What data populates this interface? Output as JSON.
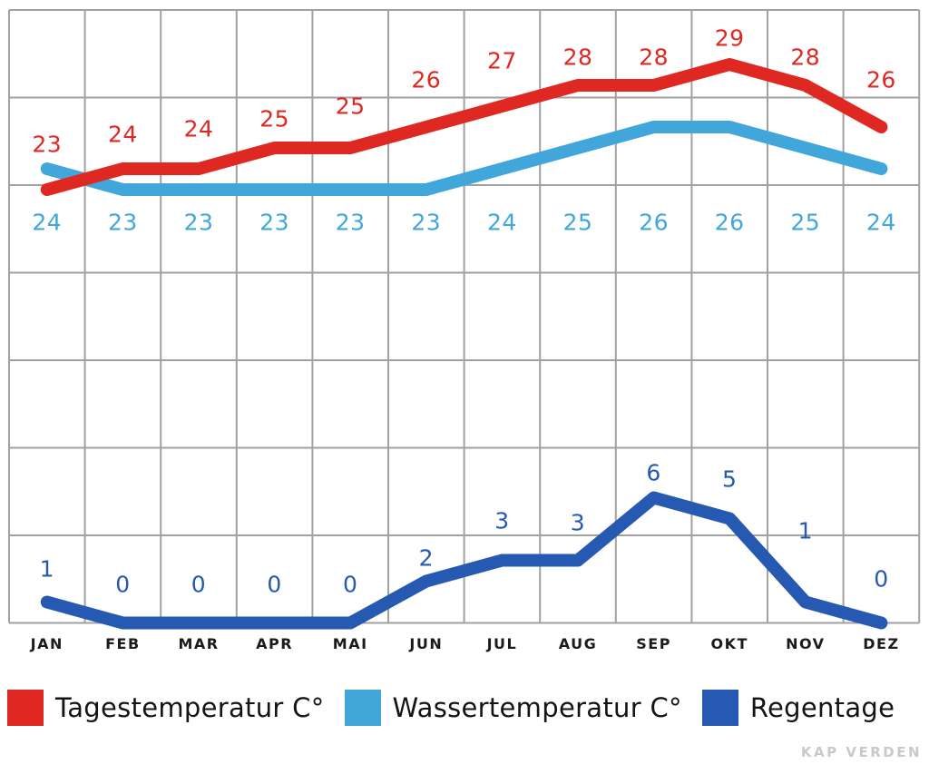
{
  "chart_data": {
    "type": "line",
    "title": "",
    "categories": [
      "JAN",
      "FEB",
      "MAR",
      "APR",
      "MAI",
      "JUN",
      "JUL",
      "AUG",
      "SEP",
      "OKT",
      "NOV",
      "DEZ"
    ],
    "series": [
      {
        "id": "day-temp",
        "name": "Tagestemperatur C°",
        "color": "#e02823",
        "values": [
          23,
          24,
          24,
          25,
          25,
          26,
          27,
          28,
          28,
          29,
          28,
          26
        ]
      },
      {
        "id": "water-temp",
        "name": "Wassertemperatur C°",
        "color": "#41a7db",
        "values": [
          24,
          23,
          23,
          23,
          23,
          23,
          24,
          25,
          26,
          26,
          25,
          24
        ]
      },
      {
        "id": "rain-days",
        "name": "Regentage",
        "color": "#2659b2",
        "values": [
          1,
          0,
          0,
          0,
          0,
          2,
          3,
          3,
          6,
          5,
          1,
          0
        ]
      }
    ],
    "grid": {
      "on": true,
      "rows": 7,
      "cols": 12,
      "color": "#a1a1a1"
    },
    "legend_position": "bottom",
    "value_labels": true,
    "xlabel": "",
    "ylabel": ""
  },
  "watermark": "KAP VERDEN",
  "colors": {
    "background": "#ffffff",
    "grid": "#a1a1a1",
    "month_label": "#1b1b1b",
    "legend_text": "#141414",
    "watermark": "#c9c9c9"
  }
}
